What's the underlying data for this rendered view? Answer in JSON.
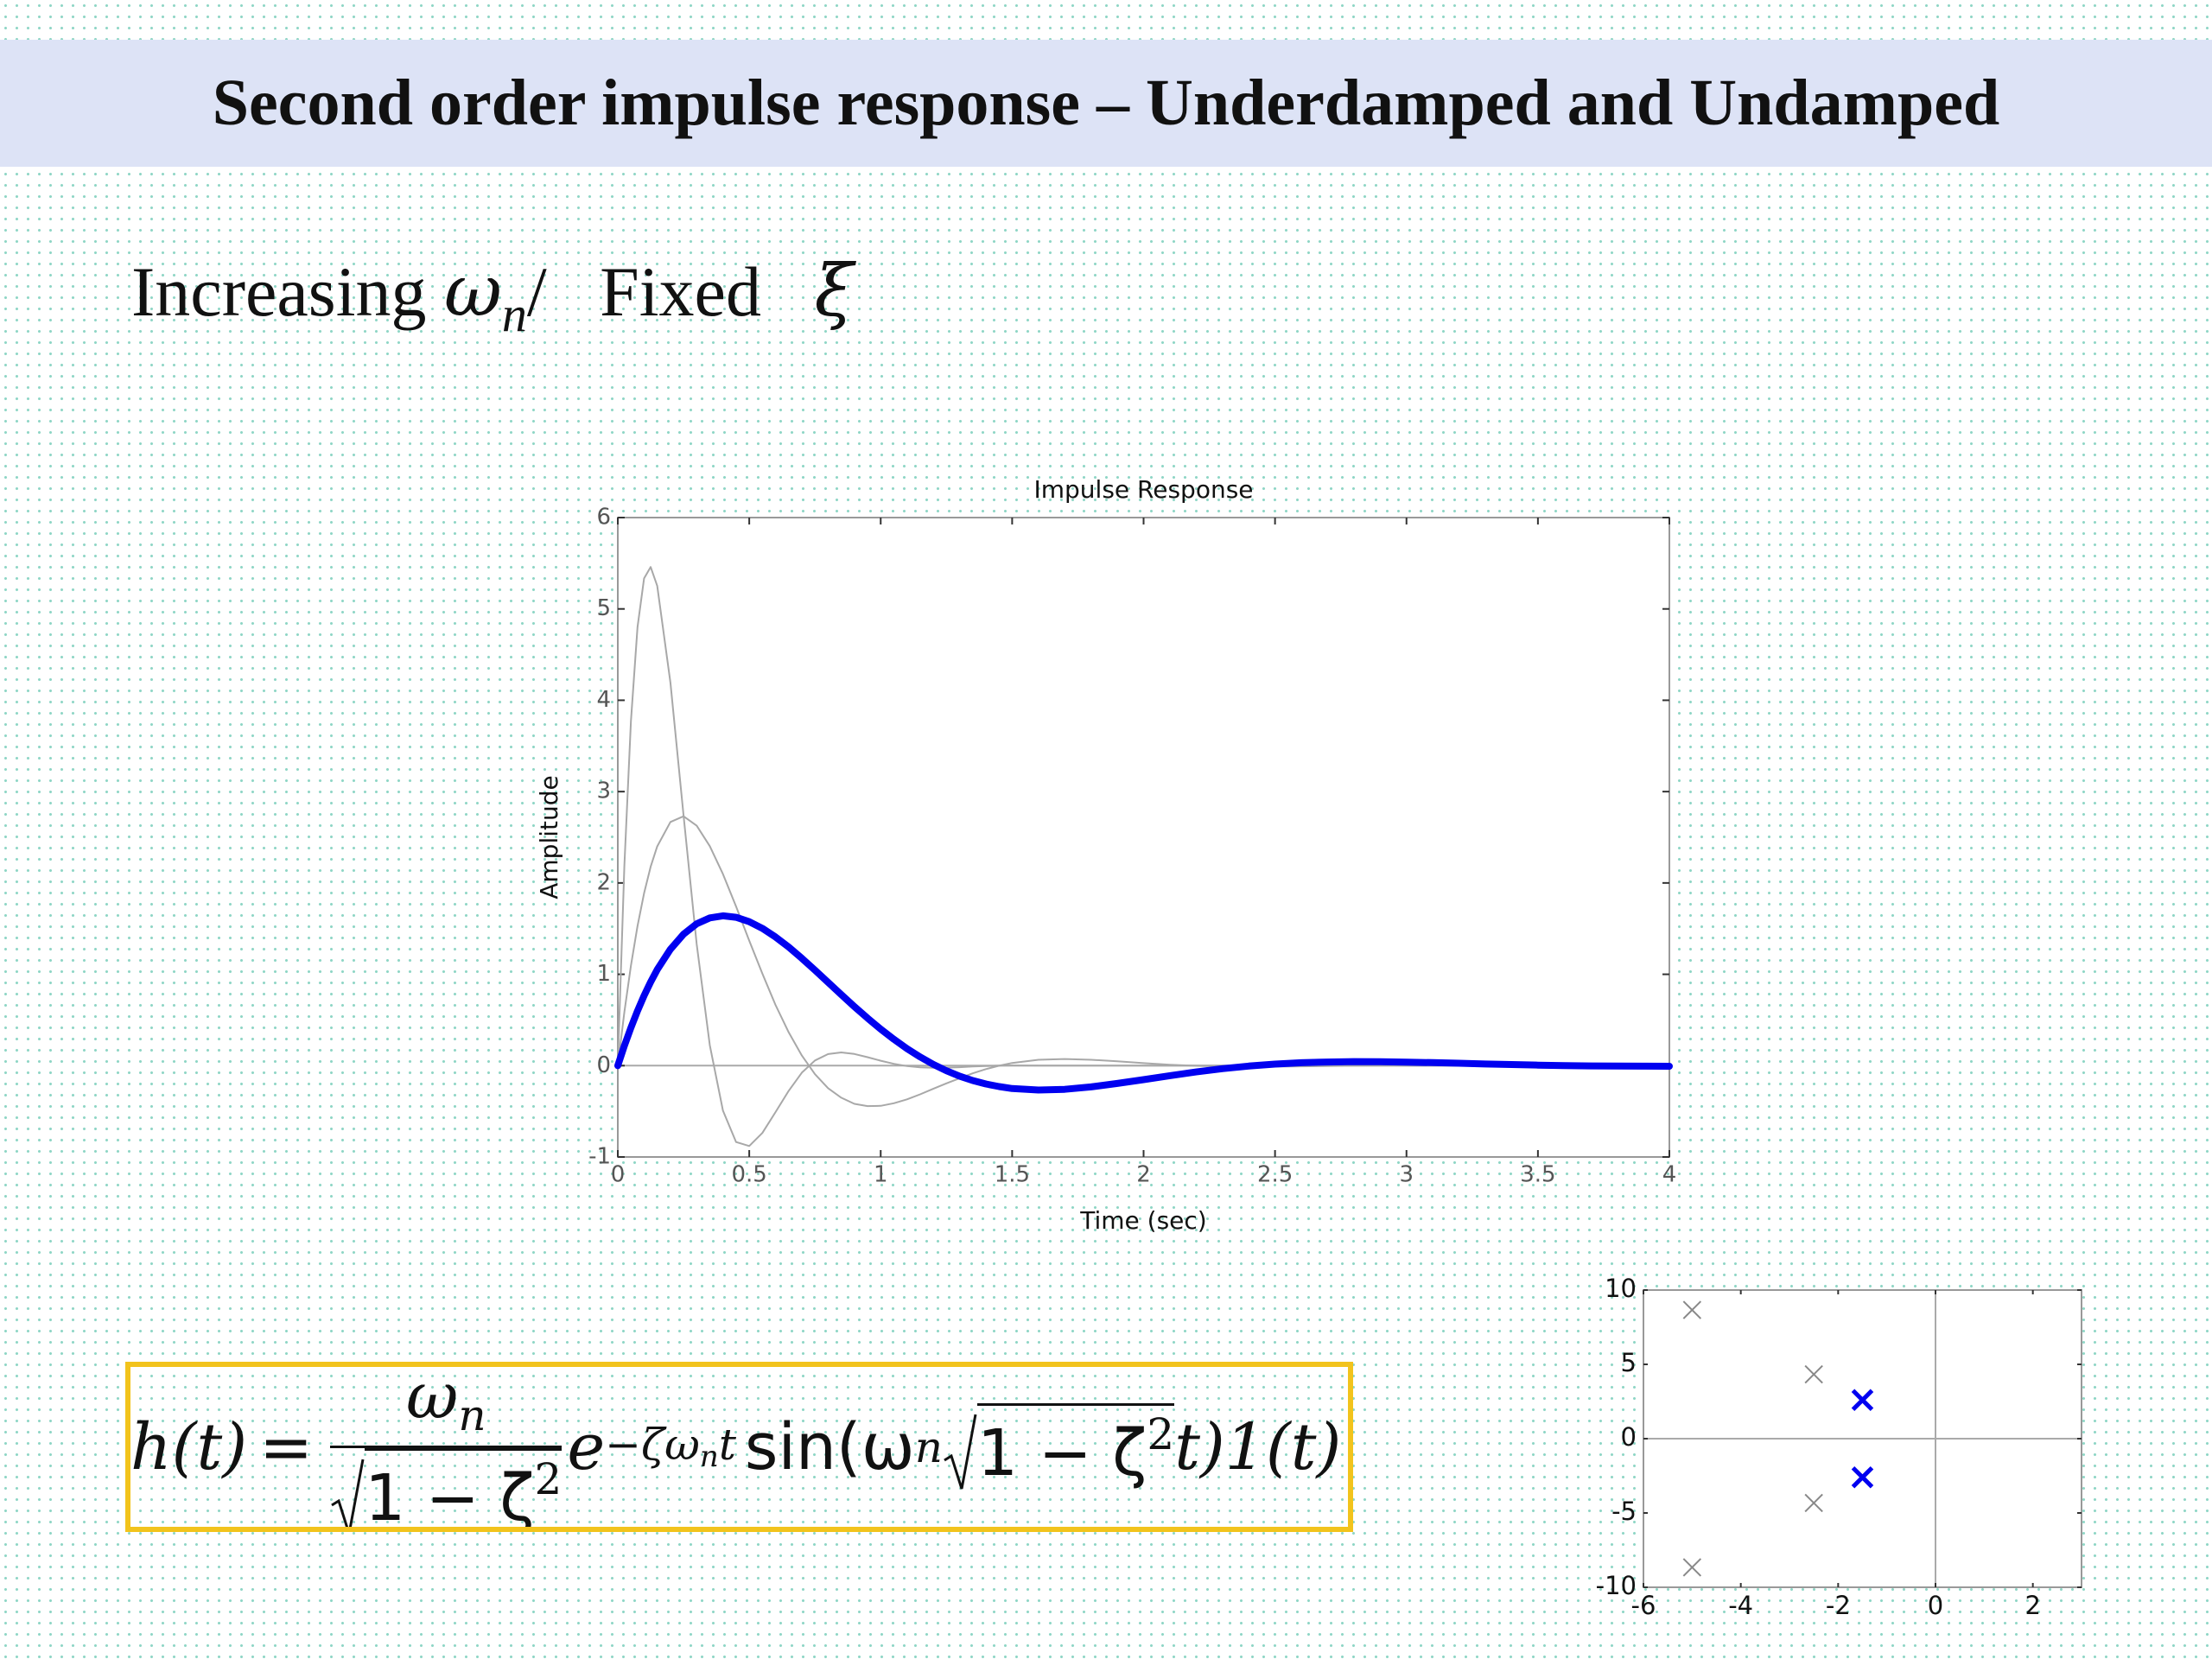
{
  "title": "Second order impulse response – Underdamped and Undamped",
  "subheading": {
    "text": "Increasing",
    "symbol": "ω",
    "sub": "n",
    "slash": "/",
    "text2": "Fixed",
    "symbol2": "ξ"
  },
  "formula": {
    "lhs": "h(t)",
    "eq": "=",
    "num": "ω",
    "num_sub": "n",
    "den": "1 − ζ",
    "den_sup": "2",
    "exp_base": "e",
    "exp": "−ζω",
    "exp_sub": "n",
    "exp_end": "t",
    "func": "sin(ω",
    "func_sub": "n",
    "root": "1 − ζ",
    "root_sup": "2",
    "tail": "t)1(t)"
  },
  "chart_data": [
    {
      "type": "line",
      "title": "Impulse Response",
      "x_label": "Time (sec)",
      "y_label": "Amplitude",
      "xlim": [
        0,
        4
      ],
      "xticks": [
        0,
        0.5,
        1,
        1.5,
        2,
        2.5,
        3,
        3.5,
        4
      ],
      "ylim": [
        -1,
        6
      ],
      "yticks": [
        -1,
        0,
        1,
        2,
        3,
        4,
        5,
        6
      ],
      "x": [
        0,
        0.025,
        0.05,
        0.075,
        0.1,
        0.125,
        0.15,
        0.2,
        0.25,
        0.3,
        0.35,
        0.4,
        0.45,
        0.5,
        0.55,
        0.6,
        0.65,
        0.7,
        0.75,
        0.8,
        0.85,
        0.9,
        0.95,
        1,
        1.05,
        1.1,
        1.15,
        1.2,
        1.25,
        1.3,
        1.35,
        1.4,
        1.45,
        1.5,
        1.6,
        1.7,
        1.8,
        1.9,
        2,
        2.1,
        2.2,
        2.3,
        2.4,
        2.5,
        2.6,
        2.7,
        2.8,
        2.9,
        3,
        3.1,
        3.2,
        3.3,
        3.4,
        3.5,
        3.6,
        3.7,
        3.8,
        3.9,
        4
      ],
      "series": [
        {
          "color": "#a8a8a8",
          "weight": "thin",
          "values": [
            0,
            2.189,
            3.773,
            4.8,
            5.334,
            5.459,
            5.254,
            4.193,
            2.738,
            1.33,
            0.222,
            -0.493,
            -0.836,
            -0.88,
            -0.737,
            -0.509,
            -0.275,
            -0.077,
            0.057,
            0.127,
            0.145,
            0.128,
            0.093,
            0.054,
            0.02,
            -0.005,
            -0.019,
            -0.024,
            -0.022,
            -0.017,
            -0.01,
            -0.005,
            0,
            0.002,
            0,
            0,
            0,
            0,
            0,
            0,
            0,
            0,
            0,
            0,
            0,
            0,
            0,
            0,
            0,
            0,
            0,
            0,
            0,
            0,
            0,
            0,
            0,
            0,
            0
          ]
        },
        {
          "color": "#a8a8a8",
          "weight": "thin",
          "values": [
            0,
            0.586,
            1.095,
            1.528,
            1.887,
            2.177,
            2.4,
            2.667,
            2.73,
            2.627,
            2.403,
            2.097,
            1.742,
            1.369,
            1.007,
            0.665,
            0.364,
            0.111,
            -0.094,
            -0.247,
            -0.351,
            -0.418,
            -0.443,
            -0.44,
            -0.412,
            -0.369,
            -0.314,
            -0.254,
            -0.194,
            -0.138,
            -0.084,
            -0.038,
            -0.001,
            0.029,
            0.064,
            0.073,
            0.064,
            0.047,
            0.027,
            0.01,
            -0.002,
            -0.009,
            -0.012,
            -0.011,
            -0.008,
            -0.005,
            -0.001,
            0.001,
            0,
            0,
            0,
            0,
            0,
            0,
            0,
            0,
            0,
            0,
            0
          ]
        },
        {
          "color": "#0000f0",
          "weight": "bold",
          "values": [
            0,
            0.217,
            0.416,
            0.6,
            0.766,
            0.916,
            1.051,
            1.274,
            1.44,
            1.553,
            1.617,
            1.64,
            1.624,
            1.576,
            1.503,
            1.408,
            1.298,
            1.175,
            1.045,
            0.912,
            0.777,
            0.646,
            0.52,
            0.399,
            0.288,
            0.186,
            0.095,
            0.014,
            -0.056,
            -0.115,
            -0.163,
            -0.201,
            -0.229,
            -0.251,
            -0.267,
            -0.259,
            -0.233,
            -0.195,
            -0.153,
            -0.11,
            -0.069,
            -0.033,
            -0.005,
            0.017,
            0.032,
            0.04,
            0.044,
            0.042,
            0.038,
            0.033,
            0.026,
            0.018,
            0.012,
            0.006,
            0.001,
            -0.003,
            -0.005,
            -0.006,
            -0.007
          ]
        }
      ]
    },
    {
      "type": "scatter",
      "xlim": [
        -6,
        3
      ],
      "xticks": [
        -6,
        -4,
        -2,
        0,
        2
      ],
      "ylim": [
        -10,
        10
      ],
      "yticks": [
        -10,
        -5,
        0,
        5,
        10
      ],
      "series": [
        {
          "color": "#888888",
          "weight": "thin",
          "x": [
            -5,
            -5,
            -2.5,
            -2.5
          ],
          "values": [
            8.66,
            -8.66,
            4.33,
            -4.33
          ]
        },
        {
          "color": "#0000f0",
          "weight": "bold",
          "x": [
            -1.5,
            -1.5
          ],
          "values": [
            2.6,
            -2.6
          ]
        }
      ]
    }
  ]
}
